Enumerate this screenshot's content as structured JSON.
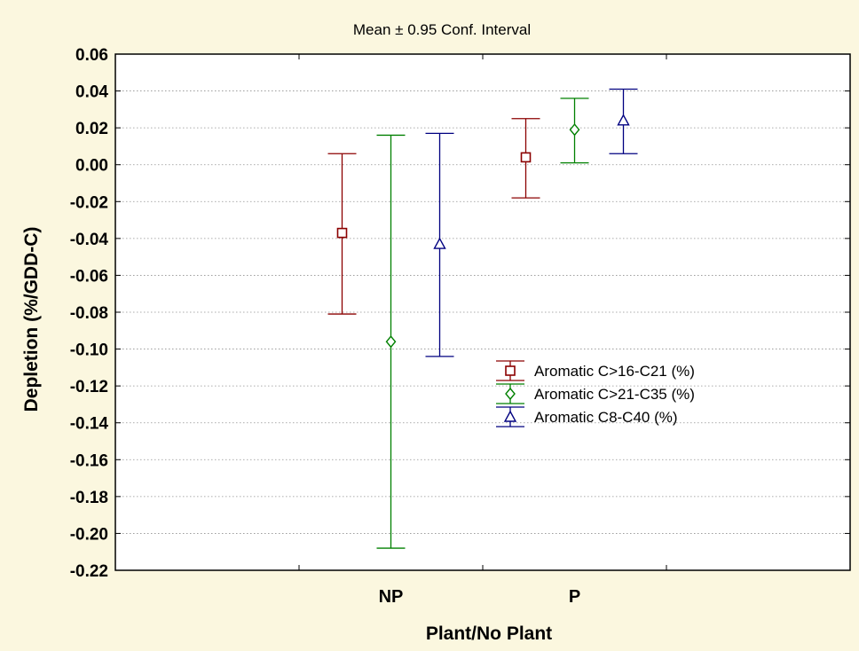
{
  "chart_data": {
    "type": "scatter",
    "subtype": "mean-with-error-bars",
    "title": "Mean ± 0.95 Conf. Interval",
    "xlabel": "Plant/No Plant",
    "ylabel": "Depletion (%/GDD-C)",
    "categories": [
      "NP",
      "P"
    ],
    "ylim": [
      -0.22,
      0.06
    ],
    "ytick_step": 0.02,
    "grid": "horizontal dotted",
    "legend_position": "center-right",
    "background": "#fbf7df",
    "plot_background": "#ffffff",
    "series": [
      {
        "name": "Aromatic C>16-C21 (%)",
        "marker": "square",
        "color": "#8b0000",
        "points": [
          {
            "category": "NP",
            "mean": -0.037,
            "lower": -0.081,
            "upper": 0.006
          },
          {
            "category": "P",
            "mean": 0.004,
            "lower": -0.018,
            "upper": 0.025
          }
        ]
      },
      {
        "name": "Aromatic C>21-C35  (%)",
        "marker": "diamond",
        "color": "#008000",
        "points": [
          {
            "category": "NP",
            "mean": -0.096,
            "lower": -0.208,
            "upper": 0.016
          },
          {
            "category": "P",
            "mean": 0.019,
            "lower": 0.001,
            "upper": 0.036
          }
        ]
      },
      {
        "name": "Aromatic C8-C40  (%)",
        "marker": "triangle",
        "color": "#000080",
        "points": [
          {
            "category": "NP",
            "mean": -0.043,
            "lower": -0.104,
            "upper": 0.017
          },
          {
            "category": "P",
            "mean": 0.024,
            "lower": 0.006,
            "upper": 0.041
          }
        ]
      }
    ]
  }
}
